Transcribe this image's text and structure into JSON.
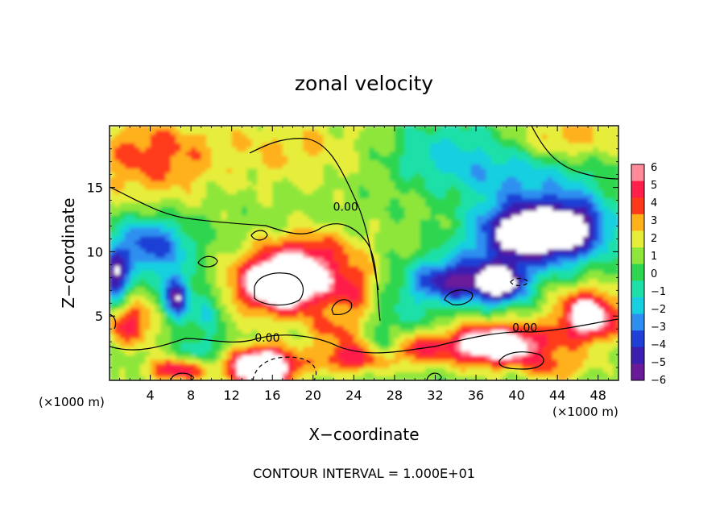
{
  "chart_data": {
    "type": "heatmap",
    "title": "zonal velocity",
    "xlabel": "X−coordinate",
    "ylabel": "Z−coordinate",
    "x_units_left": "(×1000 m)",
    "x_units_right": "(×1000 m)",
    "footer": "CONTOUR INTERVAL = 1.000E+01",
    "xlim": [
      0,
      50
    ],
    "ylim": [
      0,
      19.8
    ],
    "x_ticks": [
      4,
      8,
      12,
      16,
      20,
      24,
      28,
      32,
      36,
      40,
      44,
      48
    ],
    "x_tick_labels": [
      "4",
      "8",
      "12",
      "16",
      "20",
      "24",
      "28",
      "32",
      "36",
      "40",
      "44",
      "48"
    ],
    "y_ticks": [
      5,
      10,
      15
    ],
    "y_tick_labels": [
      "5",
      "10",
      "15"
    ],
    "colorbar": {
      "min": -6,
      "max": 6,
      "tick_labels": [
        "6",
        "5",
        "4",
        "3",
        "2",
        "1",
        "0",
        "−1",
        "−2",
        "−3",
        "−4",
        "−5",
        "−6"
      ],
      "colors": [
        "#6a1b9a",
        "#3a1fb0",
        "#1f3fd6",
        "#2f8ff0",
        "#16cfe0",
        "#1de0a8",
        "#2ed650",
        "#8fe63a",
        "#e6ee3a",
        "#ffb11a",
        "#ff3a1a",
        "#ff1f4a",
        "#ff8a9a"
      ]
    },
    "contour_labels": [
      {
        "text": "0.00",
        "x": 15.5,
        "y": 3.0
      },
      {
        "text": "0.00",
        "x": 40.8,
        "y": 3.8
      },
      {
        "text": "0.00",
        "x": 23.2,
        "y": 13.2
      }
    ],
    "field": {
      "background": 0.8,
      "blobs": [
        {
          "x": 4,
          "y": 17.5,
          "v": 3.2,
          "rx": 6,
          "ry": 3.5
        },
        {
          "x": 18,
          "y": 18,
          "v": 1.8,
          "rx": 8,
          "ry": 3
        },
        {
          "x": 45,
          "y": 19,
          "v": 2.4,
          "rx": 5,
          "ry": 2
        },
        {
          "x": 33,
          "y": 18,
          "v": -2.2,
          "rx": 6,
          "ry": 2.5
        },
        {
          "x": 40,
          "y": 16,
          "v": -2.5,
          "rx": 8,
          "ry": 2
        },
        {
          "x": 41,
          "y": 11.5,
          "v": -9,
          "rx": 5,
          "ry": 2.6
        },
        {
          "x": 46,
          "y": 12,
          "v": -5,
          "rx": 3.5,
          "ry": 2.5
        },
        {
          "x": 34,
          "y": 8,
          "v": -4,
          "rx": 4,
          "ry": 2
        },
        {
          "x": 38.5,
          "y": 7.5,
          "v": -7,
          "rx": 2.4,
          "ry": 1.5
        },
        {
          "x": 4,
          "y": 10.5,
          "v": -5,
          "rx": 4,
          "ry": 2.2
        },
        {
          "x": 0.5,
          "y": 8,
          "v": -6,
          "rx": 1.5,
          "ry": 2
        },
        {
          "x": 6.5,
          "y": 6.5,
          "v": -7,
          "rx": 1.2,
          "ry": 1.8
        },
        {
          "x": 9.5,
          "y": 5.5,
          "v": -3,
          "rx": 1.2,
          "ry": 2
        },
        {
          "x": 17,
          "y": 7.5,
          "v": 9,
          "rx": 4.5,
          "ry": 2.2
        },
        {
          "x": 20,
          "y": 10,
          "v": 3,
          "rx": 5,
          "ry": 2
        },
        {
          "x": 24,
          "y": 7,
          "v": 3,
          "rx": 2.5,
          "ry": 2
        },
        {
          "x": 22,
          "y": 4,
          "v": 2.5,
          "rx": 3,
          "ry": 1.2
        },
        {
          "x": 2,
          "y": 4.5,
          "v": 4,
          "rx": 2.5,
          "ry": 1.8
        },
        {
          "x": 15,
          "y": 1,
          "v": 10,
          "rx": 3,
          "ry": 1.5
        },
        {
          "x": 6.5,
          "y": 0.8,
          "v": 4.5,
          "rx": 3,
          "ry": 0.9
        },
        {
          "x": 24,
          "y": 1.8,
          "v": 4.5,
          "rx": 4,
          "ry": 1.2
        },
        {
          "x": 30,
          "y": 2.5,
          "v": 3,
          "rx": 3,
          "ry": 1.2
        },
        {
          "x": 38,
          "y": 2.8,
          "v": 8,
          "rx": 5,
          "ry": 1.6
        },
        {
          "x": 47,
          "y": 5,
          "v": 7,
          "rx": 3,
          "ry": 2
        },
        {
          "x": 44,
          "y": 1,
          "v": 2.5,
          "rx": 3,
          "ry": 1.2
        },
        {
          "x": 27,
          "y": 2.5,
          "v": -3,
          "rx": 1.5,
          "ry": 1.2
        },
        {
          "x": 9,
          "y": 2.5,
          "v": -2,
          "rx": 2,
          "ry": 1
        },
        {
          "x": 33,
          "y": 7.5,
          "v": -2.5,
          "rx": 5,
          "ry": 1.5
        },
        {
          "x": 29,
          "y": 5,
          "v": -1.5,
          "rx": 3,
          "ry": 1.5
        }
      ]
    }
  }
}
